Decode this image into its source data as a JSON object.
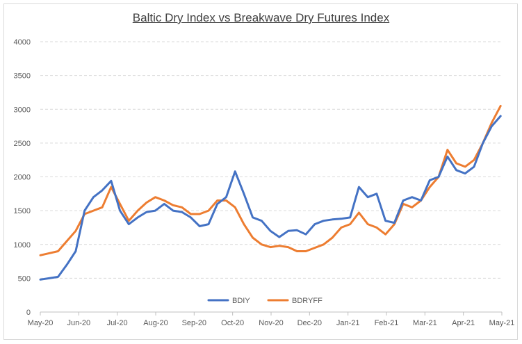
{
  "chart_data": {
    "type": "line",
    "title": "Baltic Dry Index vs Breakwave Dry Futures Index",
    "xlabel": "",
    "ylabel": "",
    "ylim": [
      0,
      4000
    ],
    "yticks": [
      "0",
      "500",
      "1000",
      "1500",
      "2000",
      "2500",
      "3000",
      "3500",
      "4000"
    ],
    "x_ticks": [
      "May-20",
      "Jun-20",
      "Jul-20",
      "Aug-20",
      "Sep-20",
      "Oct-20",
      "Nov-20",
      "Dec-20",
      "Jan-21",
      "Feb-21",
      "Mar-21",
      "Apr-21",
      "May-21"
    ],
    "grid": "horizontal",
    "legend_position": "bottom",
    "x": [
      "2020-05-01",
      "2020-05-08",
      "2020-05-15",
      "2020-05-22",
      "2020-05-29",
      "2020-06-05",
      "2020-06-12",
      "2020-06-19",
      "2020-06-26",
      "2020-07-03",
      "2020-07-10",
      "2020-07-17",
      "2020-07-24",
      "2020-07-31",
      "2020-08-07",
      "2020-08-14",
      "2020-08-21",
      "2020-08-28",
      "2020-09-04",
      "2020-09-11",
      "2020-09-18",
      "2020-09-25",
      "2020-10-02",
      "2020-10-09",
      "2020-10-16",
      "2020-10-23",
      "2020-10-30",
      "2020-11-06",
      "2020-11-13",
      "2020-11-20",
      "2020-11-27",
      "2020-12-04",
      "2020-12-11",
      "2020-12-18",
      "2020-12-25",
      "2021-01-01",
      "2021-01-08",
      "2021-01-15",
      "2021-01-22",
      "2021-01-29",
      "2021-02-05",
      "2021-02-12",
      "2021-02-19",
      "2021-02-26",
      "2021-03-05",
      "2021-03-12",
      "2021-03-19",
      "2021-03-26",
      "2021-04-02",
      "2021-04-09",
      "2021-04-16",
      "2021-04-23",
      "2021-04-30"
    ],
    "series": [
      {
        "name": "BDIY",
        "color": "#4472c4",
        "values": [
          480,
          500,
          520,
          700,
          900,
          1500,
          1700,
          1800,
          1940,
          1500,
          1300,
          1400,
          1480,
          1500,
          1600,
          1500,
          1480,
          1400,
          1270,
          1300,
          1600,
          1700,
          2080,
          1750,
          1400,
          1350,
          1200,
          1110,
          1200,
          1210,
          1150,
          1300,
          1350,
          1370,
          1380,
          1400,
          1850,
          1700,
          1750,
          1350,
          1320,
          1650,
          1700,
          1650,
          1950,
          2000,
          2300,
          2100,
          2050,
          2150,
          2500,
          2750,
          2900
        ]
      },
      {
        "name": "BDRYFF",
        "color": "#ed7d31",
        "values": [
          840,
          870,
          900,
          1050,
          1200,
          1450,
          1500,
          1550,
          1850,
          1600,
          1350,
          1500,
          1620,
          1700,
          1650,
          1580,
          1550,
          1450,
          1450,
          1500,
          1650,
          1650,
          1550,
          1300,
          1100,
          1000,
          960,
          980,
          960,
          900,
          900,
          950,
          1000,
          1100,
          1250,
          1300,
          1470,
          1300,
          1250,
          1150,
          1300,
          1600,
          1550,
          1650,
          1850,
          2000,
          2400,
          2200,
          2150,
          2250,
          2500,
          2800,
          3050
        ]
      }
    ]
  }
}
